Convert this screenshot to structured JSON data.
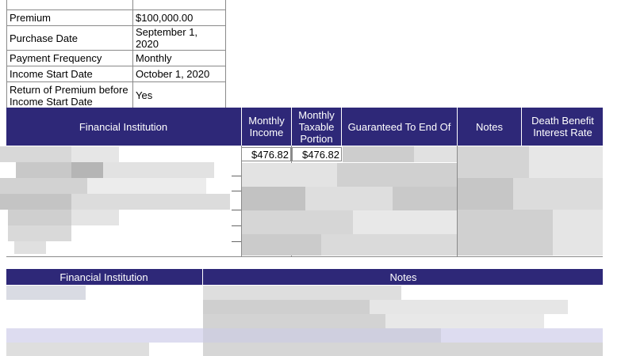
{
  "summary": {
    "rows": [
      {
        "label": "Premium",
        "value": "$100,000.00"
      },
      {
        "label": "Purchase Date",
        "value": "September 1, 2020"
      },
      {
        "label": "Payment Frequency",
        "value": "Monthly"
      },
      {
        "label": "Income Start Date",
        "value": "October 1, 2020"
      },
      {
        "label": "Return of Premium before Income Start Date",
        "value": "Yes"
      }
    ]
  },
  "table1": {
    "headers": {
      "institution": "Financial Institution",
      "monthly_income": "Monthly Income",
      "taxable": "Monthly Taxable Portion",
      "guaranteed": "Guaranteed To End Of",
      "notes": "Notes",
      "death_benefit": "Death Benefit Interest Rate"
    },
    "first_row": {
      "monthly_income": "$476.82",
      "taxable": "$476.82"
    }
  },
  "table2": {
    "headers": {
      "institution": "Financial Institution",
      "notes": "Notes"
    }
  },
  "colors": {
    "header_bg": "#2e2878",
    "header_text": "#ffffff",
    "border": "#8a8a8a"
  }
}
